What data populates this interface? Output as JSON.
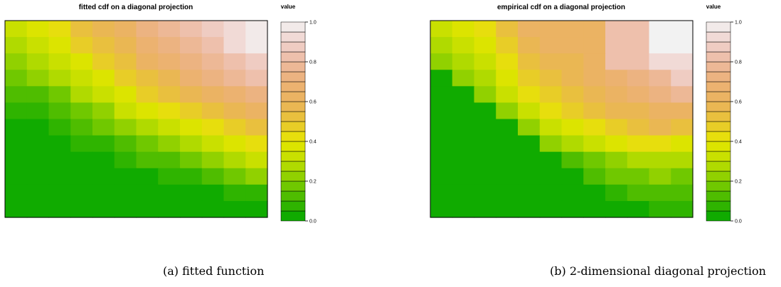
{
  "chart_data": [
    {
      "type": "heatmap",
      "title": "fitted cdf on a diagonal projection",
      "legend_title": "value",
      "legend_ticks": [
        "0.0",
        "0.2",
        "0.4",
        "0.6",
        "0.8",
        "1.0"
      ],
      "value_range": [
        0,
        1
      ],
      "levels": 20,
      "colorscale": [
        "#00A600",
        "#3EB800",
        "#81CD00",
        "#BFDE00",
        "#E6E600",
        "#E8C434",
        "#EAB35D",
        "#ECB176",
        "#EDBAA1",
        "#F0D2CD",
        "#F2F2F2"
      ],
      "grid_values": [
        [
          0.3,
          0.36,
          0.43,
          0.5,
          0.58,
          0.64,
          0.7,
          0.76,
          0.82,
          0.88,
          0.94,
          0.99
        ],
        [
          0.26,
          0.32,
          0.38,
          0.45,
          0.53,
          0.59,
          0.66,
          0.72,
          0.78,
          0.84,
          0.9,
          0.95
        ],
        [
          0.2,
          0.26,
          0.32,
          0.39,
          0.46,
          0.53,
          0.6,
          0.66,
          0.72,
          0.78,
          0.84,
          0.88
        ],
        [
          0.15,
          0.2,
          0.26,
          0.32,
          0.39,
          0.46,
          0.53,
          0.59,
          0.65,
          0.71,
          0.76,
          0.8
        ],
        [
          0.1,
          0.14,
          0.19,
          0.25,
          0.32,
          0.38,
          0.45,
          0.51,
          0.57,
          0.62,
          0.67,
          0.71
        ],
        [
          0.05,
          0.09,
          0.13,
          0.18,
          0.24,
          0.3,
          0.36,
          0.42,
          0.48,
          0.53,
          0.58,
          0.62
        ],
        [
          0.0,
          0.03,
          0.07,
          0.11,
          0.16,
          0.21,
          0.27,
          0.33,
          0.38,
          0.43,
          0.48,
          0.52
        ],
        [
          0.0,
          0.0,
          0.01,
          0.05,
          0.09,
          0.13,
          0.18,
          0.23,
          0.28,
          0.33,
          0.38,
          0.42
        ],
        [
          0.0,
          0.0,
          0.0,
          0.0,
          0.02,
          0.06,
          0.1,
          0.14,
          0.18,
          0.23,
          0.27,
          0.31
        ],
        [
          0.0,
          0.0,
          0.0,
          0.0,
          0.0,
          0.0,
          0.02,
          0.05,
          0.08,
          0.12,
          0.16,
          0.2
        ],
        [
          0.0,
          0.0,
          0.0,
          0.0,
          0.0,
          0.0,
          0.0,
          0.0,
          0.0,
          0.02,
          0.05,
          0.08
        ],
        [
          0.0,
          0.0,
          0.0,
          0.0,
          0.0,
          0.0,
          0.0,
          0.0,
          0.0,
          0.0,
          0.0,
          0.0
        ]
      ]
    },
    {
      "type": "heatmap",
      "title": "empirical cdf on a diagonal projection",
      "legend_title": "value",
      "legend_ticks": [
        "0.0",
        "0.2",
        "0.4",
        "0.6",
        "0.8",
        "1.0"
      ],
      "value_range": [
        0,
        1
      ],
      "levels": 20,
      "colorscale": [
        "#00A600",
        "#3EB800",
        "#81CD00",
        "#BFDE00",
        "#E6E600",
        "#E8C434",
        "#EAB35D",
        "#ECB176",
        "#EDBAA1",
        "#F0D2CD",
        "#F2F2F2"
      ],
      "grid_values": [
        [
          0.3,
          0.38,
          0.42,
          0.5,
          0.6,
          0.62,
          0.62,
          0.62,
          0.8,
          0.8,
          1.0,
          1.0
        ],
        [
          0.25,
          0.32,
          0.38,
          0.48,
          0.58,
          0.6,
          0.6,
          0.62,
          0.8,
          0.8,
          1.0,
          1.0
        ],
        [
          0.2,
          0.25,
          0.32,
          0.42,
          0.52,
          0.55,
          0.58,
          0.62,
          0.8,
          0.8,
          0.9,
          0.9
        ],
        [
          0.0,
          0.2,
          0.25,
          0.35,
          0.45,
          0.5,
          0.55,
          0.6,
          0.68,
          0.72,
          0.78,
          0.85
        ],
        [
          0.0,
          0.0,
          0.22,
          0.3,
          0.42,
          0.48,
          0.52,
          0.55,
          0.62,
          0.65,
          0.7,
          0.75
        ],
        [
          0.0,
          0.0,
          0.0,
          0.2,
          0.32,
          0.4,
          0.45,
          0.5,
          0.55,
          0.58,
          0.62,
          0.62
        ],
        [
          0.0,
          0.0,
          0.0,
          0.0,
          0.22,
          0.32,
          0.38,
          0.42,
          0.48,
          0.5,
          0.55,
          0.52
        ],
        [
          0.0,
          0.0,
          0.0,
          0.0,
          0.0,
          0.22,
          0.28,
          0.32,
          0.38,
          0.4,
          0.42,
          0.38
        ],
        [
          0.0,
          0.0,
          0.0,
          0.0,
          0.0,
          0.0,
          0.12,
          0.18,
          0.22,
          0.25,
          0.28,
          0.25
        ],
        [
          0.0,
          0.0,
          0.0,
          0.0,
          0.0,
          0.0,
          0.0,
          0.12,
          0.15,
          0.18,
          0.2,
          0.18
        ],
        [
          0.0,
          0.0,
          0.0,
          0.0,
          0.0,
          0.0,
          0.0,
          0.0,
          0.05,
          0.1,
          0.12,
          0.12
        ],
        [
          0.0,
          0.0,
          0.0,
          0.0,
          0.0,
          0.0,
          0.0,
          0.0,
          0.0,
          0.0,
          0.05,
          0.05
        ]
      ]
    }
  ],
  "captions": [
    "(a) fitted function",
    "(b) 2-dimensional diagonal projection"
  ]
}
